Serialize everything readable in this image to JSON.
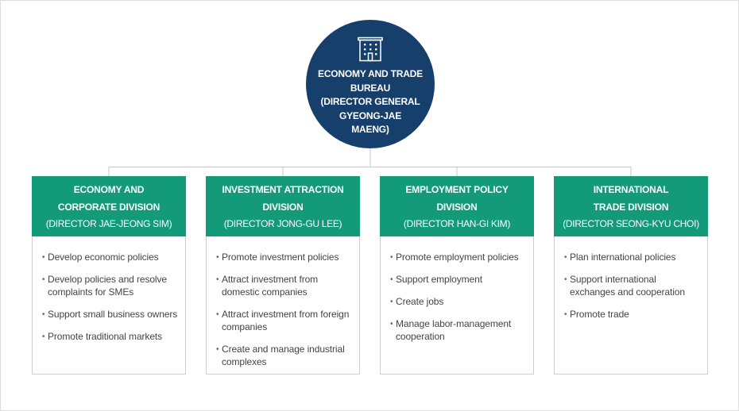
{
  "bureau": {
    "name": "ECONOMY AND TRADE\nBUREAU\n(DIRECTOR GENERAL\nGYEONG-JAE\nMAENG)",
    "icon": "office-building-icon",
    "color": "#173f6b"
  },
  "division_color": "#139a79",
  "divisions": [
    {
      "name": "ECONOMY AND\nCORPORATE DIVISION",
      "director": "(DIRECTOR JAE-JEONG SIM)",
      "tasks": [
        "Develop economic policies",
        "Develop policies and resolve complaints for SMEs",
        "Support small business owners",
        "Promote traditional markets"
      ]
    },
    {
      "name": "INVESTMENT ATTRACTION\nDIVISION",
      "director": "(DIRECTOR JONG-GU LEE)",
      "tasks": [
        "Promote investment policies",
        "Attract investment from domestic companies",
        "Attract investment from foreign companies",
        "Create and manage industrial complexes"
      ]
    },
    {
      "name": "EMPLOYMENT POLICY\nDIVISION",
      "director": "(DIRECTOR HAN-GI KIM)",
      "tasks": [
        "Promote employment policies",
        "Support employment",
        "Create jobs",
        "Manage labor-management cooperation"
      ]
    },
    {
      "name": "INTERNATIONAL\nTRADE DIVISION",
      "director": "(DIRECTOR SEONG-KYU CHOI)",
      "tasks": [
        "Plan international policies",
        "Support international exchanges and cooperation",
        "Promote trade"
      ]
    }
  ]
}
